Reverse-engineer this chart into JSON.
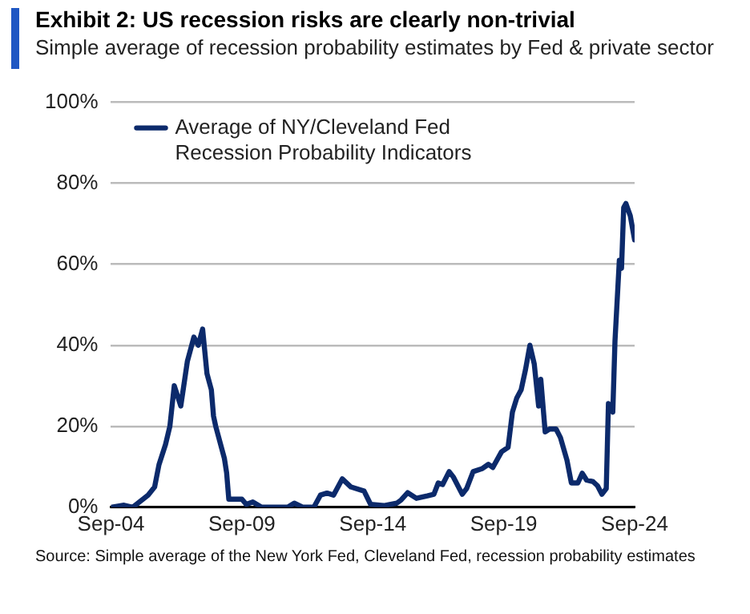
{
  "chart_data": {
    "type": "line",
    "title": "Exhibit 2: US recession risks are clearly non-trivial",
    "subtitle": "Simple average of recession probability estimates by Fed & private sector",
    "annotations": [
      "Source: Simple average of the New York Fed, Cleveland Fed, recession  probability estimates"
    ],
    "xlim": [
      "2004-09",
      "2024-09"
    ],
    "xticks": [
      {
        "value": "2004-09",
        "label": "Sep-04"
      },
      {
        "value": "2009-09",
        "label": "Sep-09"
      },
      {
        "value": "2014-09",
        "label": "Sep-14"
      },
      {
        "value": "2019-09",
        "label": "Sep-19"
      },
      {
        "value": "2024-09",
        "label": "Sep-24"
      }
    ],
    "ylim": [
      0,
      100
    ],
    "yticks": [
      {
        "value": 0,
        "label": "0%"
      },
      {
        "value": 20,
        "label": "20%"
      },
      {
        "value": 40,
        "label": "40%"
      },
      {
        "value": 60,
        "label": "60%"
      },
      {
        "value": 80,
        "label": "80%"
      },
      {
        "value": 100,
        "label": "100%"
      }
    ],
    "grid": "y",
    "legend": "top left",
    "marker": "none",
    "line_style": "solid",
    "series": [
      {
        "name": "Average of NY/Cleveland Fed Recession Probability Indicators",
        "color": "#0c2a6b",
        "x": [
          "2004-09",
          "2005-03",
          "2005-07",
          "2006-02",
          "2006-05",
          "2006-07",
          "2006-10",
          "2006-12",
          "2007-02",
          "2007-05",
          "2007-08",
          "2007-11",
          "2008-01",
          "2008-03",
          "2008-05",
          "2008-07",
          "2008-08",
          "2008-09",
          "2009-01",
          "2009-02",
          "2009-03",
          "2009-09",
          "2009-11",
          "2010-02",
          "2010-06",
          "2011-06",
          "2011-09",
          "2012-01",
          "2012-06",
          "2012-09",
          "2012-12",
          "2013-03",
          "2013-07",
          "2013-11",
          "2014-05",
          "2014-08",
          "2015-02",
          "2015-08",
          "2015-10",
          "2016-01",
          "2016-05",
          "2016-10",
          "2017-01",
          "2017-03",
          "2017-05",
          "2017-08",
          "2017-10",
          "2018-02",
          "2018-04",
          "2018-07",
          "2018-11",
          "2019-02",
          "2019-04",
          "2019-08",
          "2019-11",
          "2020-01",
          "2020-03",
          "2020-05",
          "2020-07",
          "2020-09",
          "2020-11",
          "2021-01",
          "2021-02",
          "2021-04",
          "2021-06",
          "2021-09",
          "2021-11",
          "2022-02",
          "2022-04",
          "2022-07",
          "2022-09",
          "2022-11",
          "2023-02",
          "2023-04",
          "2023-06",
          "2023-08",
          "2023-09",
          "2023-11",
          "2023-12",
          "2024-02",
          "2024-03",
          "2024-04",
          "2024-05",
          "2024-07",
          "2024-09"
        ],
        "values": [
          0,
          0.5,
          0,
          3,
          5,
          10.5,
          15.5,
          20,
          30,
          25,
          36,
          42,
          40,
          44,
          33,
          29,
          22.5,
          20,
          12,
          8.5,
          2,
          2,
          0.7,
          1.3,
          0,
          0,
          1,
          0,
          0,
          3,
          3.5,
          3,
          7,
          5,
          4,
          0.7,
          0.4,
          1,
          1.8,
          3.6,
          2.2,
          2.8,
          3.2,
          6,
          5.6,
          8.8,
          7.4,
          3.2,
          4.6,
          8.8,
          9.5,
          10.6,
          9.8,
          13.7,
          14.8,
          23.5,
          27,
          29,
          34,
          40,
          35.4,
          25,
          31.6,
          18.6,
          19.3,
          19.3,
          17.2,
          11.6,
          6,
          6,
          8.4,
          6.7,
          6.3,
          5.3,
          3.2,
          4.6,
          25.6,
          23.5,
          41,
          61,
          59,
          74,
          75,
          72,
          66
        ]
      }
    ]
  }
}
